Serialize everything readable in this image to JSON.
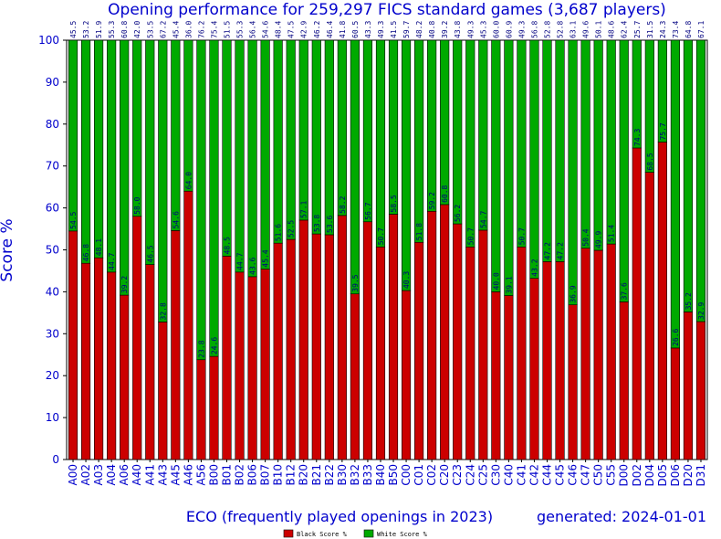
{
  "chart_data": {
    "type": "bar",
    "stacked": true,
    "title": "Opening performance for 259,297 FICS standard games (3,687 players)",
    "ylabel": "Score %",
    "xlabel": "ECO (frequently played openings in 2023)",
    "generated": "generated: 2024-01-01",
    "ylim": [
      0,
      100
    ],
    "yticks": [
      0,
      10,
      20,
      30,
      40,
      50,
      60,
      70,
      80,
      90,
      100
    ],
    "categories": [
      "A00",
      "A02",
      "A03",
      "A04",
      "A06",
      "A40",
      "A41",
      "A43",
      "A45",
      "A46",
      "A56",
      "B00",
      "B01",
      "B02",
      "B06",
      "B07",
      "B10",
      "B12",
      "B20",
      "B21",
      "B22",
      "B30",
      "B32",
      "B33",
      "B40",
      "B50",
      "C00",
      "C01",
      "C02",
      "C20",
      "C23",
      "C24",
      "C25",
      "C30",
      "C40",
      "C41",
      "C42",
      "C44",
      "C45",
      "C46",
      "C47",
      "C50",
      "C55",
      "D00",
      "D02",
      "D04",
      "D05",
      "D06",
      "D20",
      "D31"
    ],
    "series": [
      {
        "name": "Black Score %",
        "color": "#cc0000",
        "values": [
          54.5,
          46.8,
          48.1,
          44.7,
          39.2,
          58.0,
          46.5,
          32.8,
          54.6,
          64.0,
          23.8,
          24.6,
          48.5,
          44.7,
          43.6,
          45.4,
          51.6,
          52.5,
          57.1,
          53.8,
          53.6,
          58.2,
          39.5,
          56.7,
          50.7,
          58.5,
          40.3,
          51.8,
          59.2,
          60.8,
          56.2,
          50.7,
          54.7,
          40.0,
          39.1,
          50.7,
          43.2,
          47.2,
          47.2,
          36.9,
          50.4,
          49.9,
          51.4,
          37.6,
          74.3,
          68.5,
          75.7,
          26.6,
          35.2,
          32.9
        ]
      },
      {
        "name": "White Score %",
        "color": "#00aa00",
        "values": [
          45.5,
          53.2,
          51.9,
          55.3,
          60.8,
          42.0,
          53.5,
          67.2,
          45.4,
          36.0,
          76.2,
          75.4,
          51.5,
          55.3,
          56.4,
          54.6,
          48.4,
          47.5,
          42.9,
          46.2,
          46.4,
          41.8,
          60.5,
          43.3,
          49.3,
          41.5,
          59.7,
          48.2,
          40.8,
          39.2,
          43.8,
          49.3,
          45.3,
          60.0,
          60.9,
          49.3,
          56.8,
          52.8,
          52.8,
          63.1,
          49.6,
          50.1,
          48.6,
          62.4,
          25.7,
          31.5,
          24.3,
          73.4,
          64.8,
          67.1
        ]
      }
    ],
    "legend": "bottom-center",
    "grid": false
  }
}
